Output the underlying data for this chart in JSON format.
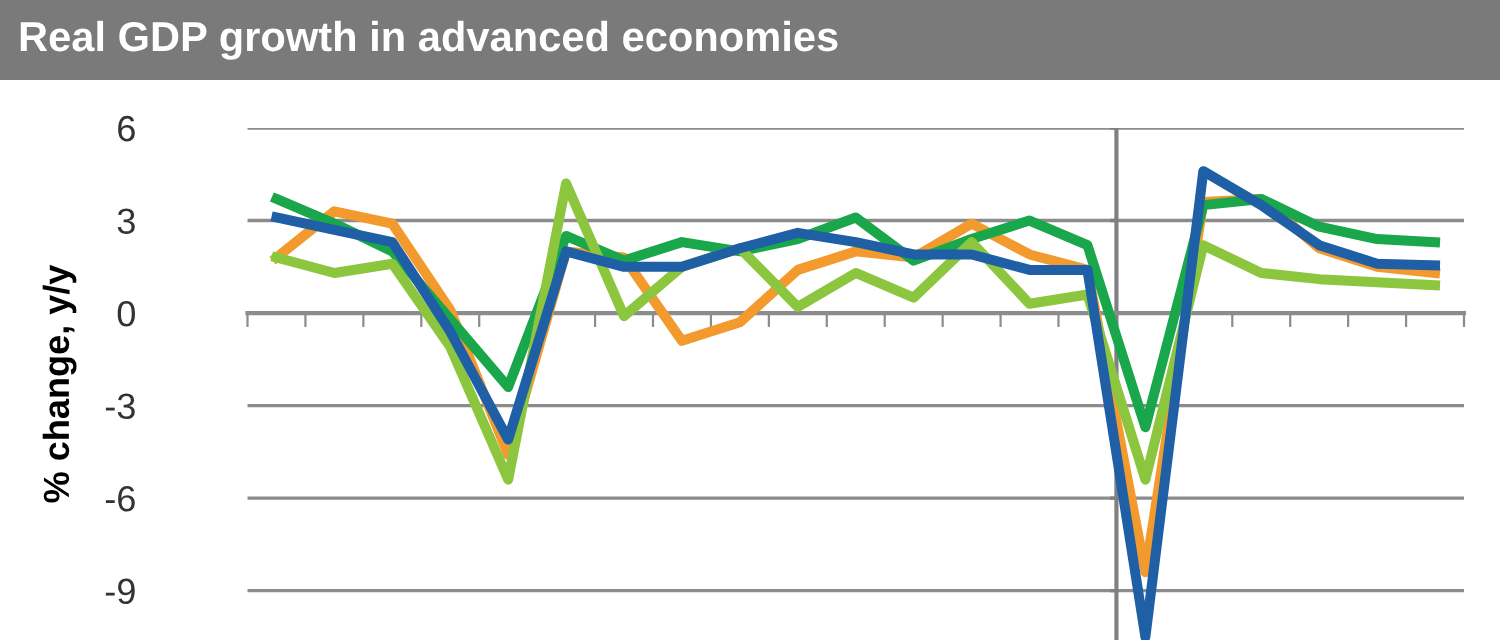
{
  "chart_data": {
    "type": "line",
    "title": "Real GDP growth in advanced economies",
    "ylabel": "% change, y/y",
    "categories": [
      null,
      null,
      null,
      null,
      null,
      null,
      null,
      null,
      null,
      null,
      null,
      null,
      null,
      null,
      null,
      null,
      null,
      null,
      null,
      null,
      null
    ],
    "series": [
      {
        "color": "#f39a2e",
        "values": [
          1.8,
          3.3,
          2.9,
          0.1,
          -4.6,
          2.0,
          1.8,
          -0.9,
          -0.3,
          1.4,
          2.0,
          1.8,
          2.9,
          1.9,
          1.4,
          -8.4,
          3.6,
          3.7,
          2.1,
          1.5,
          1.3
        ]
      },
      {
        "color": "#1aa64a",
        "values": [
          3.7,
          2.9,
          2.0,
          -0.2,
          -2.4,
          2.5,
          1.7,
          2.3,
          2.0,
          2.4,
          3.1,
          1.7,
          2.4,
          3.0,
          2.2,
          -3.7,
          3.5,
          3.7,
          2.8,
          2.4,
          2.3
        ]
      },
      {
        "color": "#8cc63f",
        "values": [
          1.8,
          1.3,
          1.6,
          -1.1,
          -5.4,
          4.2,
          -0.1,
          1.5,
          2.1,
          0.2,
          1.3,
          0.5,
          2.3,
          0.3,
          0.6,
          -5.4,
          2.2,
          1.3,
          1.1,
          1.0,
          0.9
        ]
      },
      {
        "color": "#1f5fa6",
        "values": [
          3.1,
          2.7,
          2.3,
          -0.6,
          -4.1,
          2.0,
          1.5,
          1.5,
          2.1,
          2.6,
          2.3,
          1.9,
          1.9,
          1.4,
          1.4,
          -10.5,
          4.6,
          3.5,
          2.2,
          1.6,
          1.55
        ]
      }
    ],
    "ylim": [
      -10.6,
      6
    ],
    "yticks": [
      -9,
      -6,
      -3,
      0,
      3,
      6
    ],
    "grid": "y",
    "tick_labels": "y",
    "marker": "none",
    "line_style": "solid"
  }
}
